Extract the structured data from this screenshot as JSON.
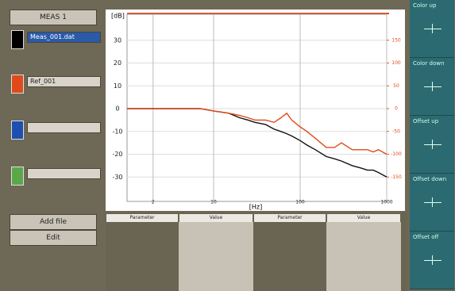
{
  "left_panel": {
    "mode_button": "MEAS 1",
    "file_1": "Meas_001.dat",
    "file_2": "Ref_001",
    "add_button": "Add file",
    "edit_button": "Edit"
  },
  "right_panel": {
    "buttons": [
      "Color up",
      "Color down",
      "Offset up",
      "Offset down",
      "Offset off"
    ]
  },
  "table": {
    "headers": [
      "Parameter",
      "Value",
      "Parameter",
      "Value"
    ]
  },
  "chart_data": {
    "type": "line",
    "y_label": "[dB]",
    "x_label": "[Hz]",
    "log_x": true,
    "grid": true,
    "x": [
      1,
      2,
      3,
      5,
      7,
      10,
      15,
      20,
      25,
      30,
      40,
      50,
      60,
      70,
      80,
      100,
      120,
      150,
      200,
      250,
      300,
      400,
      500,
      600,
      700,
      800,
      1000
    ],
    "xlim": [
      1,
      1000
    ],
    "xticks": [
      2,
      10,
      100,
      1000
    ],
    "ylim": [
      -40,
      40
    ],
    "yticks": [
      30,
      20,
      10,
      0,
      -10,
      -20,
      -30
    ],
    "y2lim": [
      -200,
      200
    ],
    "y2ticks": [
      150,
      100,
      50,
      0,
      -50,
      -100,
      -150
    ],
    "series": [
      {
        "name": "Meas_001.dat",
        "color": "#111111",
        "values": [
          0,
          0,
          0,
          0,
          0,
          -1,
          -2,
          -4,
          -5,
          -6,
          -7,
          -9,
          -10,
          -11,
          -12,
          -14,
          -16,
          -18,
          -21,
          -22,
          -23,
          -25,
          -26,
          -27,
          -27,
          -28,
          -30
        ]
      },
      {
        "name": "Ref_001",
        "color": "#e04a1a",
        "axis": "y2",
        "values": [
          0,
          0,
          0,
          0,
          0,
          -5,
          -10,
          -15,
          -20,
          -25,
          -25,
          -30,
          -20,
          -10,
          -25,
          -40,
          -50,
          -65,
          -85,
          -85,
          -75,
          -90,
          -90,
          -90,
          -95,
          -90,
          -100
        ]
      }
    ]
  }
}
